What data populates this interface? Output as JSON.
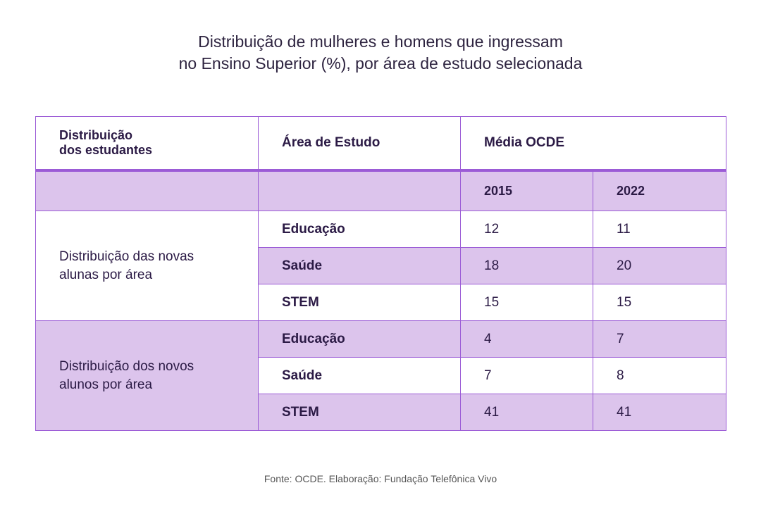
{
  "title": {
    "line1": "Distribuição de mulheres e homens que ingressam",
    "line2": "no Ensino Superior (%), por área de estudo selecionada"
  },
  "table": {
    "headers": {
      "distribution": "Distribuição\ndos estudantes",
      "area": "Área de Estudo",
      "average": "Média OCDE"
    },
    "years": [
      "2015",
      "2022"
    ],
    "groups": [
      {
        "label": "Distribuição das novas alunas por área",
        "rows": [
          {
            "area": "Educação",
            "v2015": "12",
            "v2022": "11"
          },
          {
            "area": "Saúde",
            "v2015": "18",
            "v2022": "20"
          },
          {
            "area": "STEM",
            "v2015": "15",
            "v2022": "15"
          }
        ]
      },
      {
        "label": "Distribuição dos novos alunos por área",
        "rows": [
          {
            "area": "Educação",
            "v2015": "4",
            "v2022": "7"
          },
          {
            "area": "Saúde",
            "v2015": "7",
            "v2022": "8"
          },
          {
            "area": "STEM",
            "v2015": "41",
            "v2022": "41"
          }
        ]
      }
    ]
  },
  "source": "Fonte: OCDE. Elaboração: Fundação Telefônica Vivo",
  "colors": {
    "accent": "#9b5bd6",
    "row_fill": "#dcc4ec",
    "text": "#2b1a45"
  }
}
